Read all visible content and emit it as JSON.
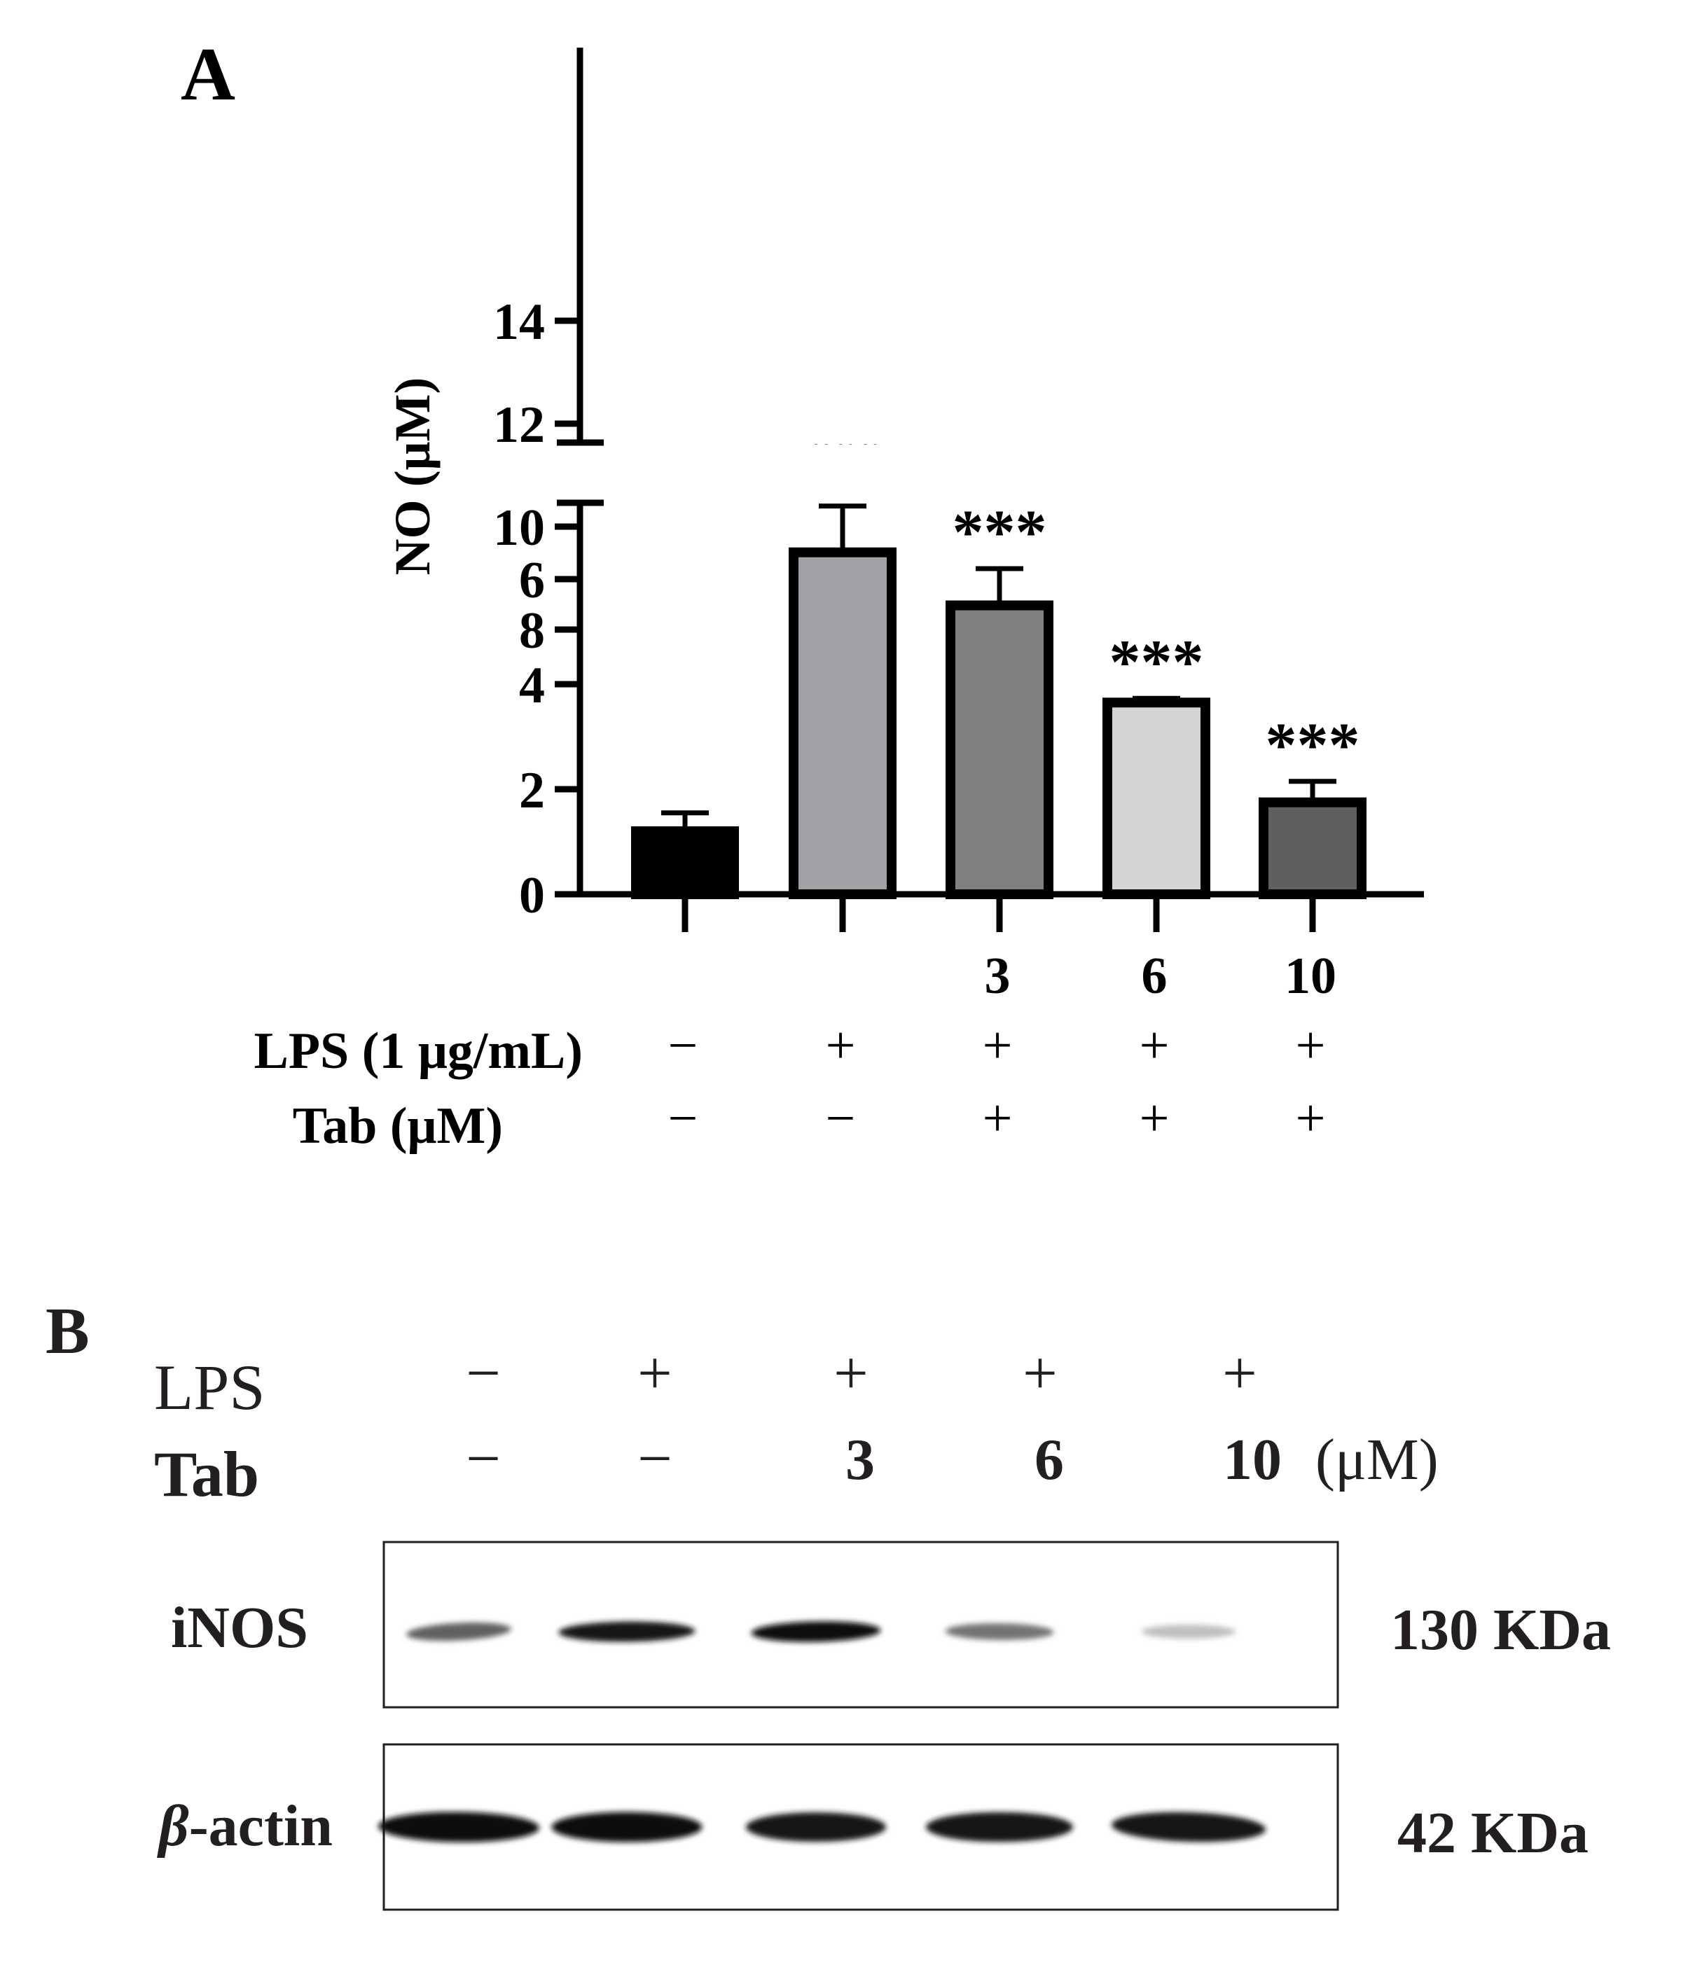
{
  "panel_a": {
    "label": "A",
    "conditions": {
      "lps_label": "LPS (1 μg/mL)",
      "tab_label": "Tab (μM)",
      "lps_signs": [
        "−",
        "+",
        "+",
        "+",
        "+"
      ],
      "tab_signs": [
        "−",
        "−",
        "+",
        "+",
        "+"
      ],
      "doses": [
        "",
        "",
        "3",
        "6",
        "10"
      ]
    }
  },
  "chart_data": {
    "type": "bar",
    "ylabel": "NO (μM)",
    "categories": [
      "",
      "",
      "3",
      "6",
      "10"
    ],
    "values": [
      1.2,
      9.5,
      5.5,
      3.65,
      1.75
    ],
    "errors": [
      0.35,
      0.9,
      0.7,
      0.08,
      0.4
    ],
    "annotations": [
      "",
      "###",
      "***",
      "***",
      "***"
    ],
    "colors": [
      "#000000",
      "#a2a2a6",
      "#808080",
      "#d4d4d4",
      "#5f5f5f"
    ],
    "yticks": [
      "0",
      "2",
      "4",
      "6",
      "8",
      "10",
      "12",
      "14"
    ],
    "ylim": [
      0,
      15
    ],
    "axis_break": [
      7.5,
      7.5
    ]
  },
  "panel_b": {
    "label": "B",
    "lps_label": "LPS",
    "tab_label": "Tab",
    "lps_signs": [
      "−",
      "+",
      "+",
      "+",
      "+"
    ],
    "tab_values": [
      "−",
      "−",
      "3",
      "6",
      "10"
    ],
    "unit": "(μM)",
    "blots": [
      {
        "name": "iNOS",
        "size": "130 KDa",
        "intensity": [
          0.62,
          0.92,
          0.95,
          0.55,
          0.25
        ]
      },
      {
        "name_prefix": "β",
        "name_suffix": "-actin",
        "size": "42 KDa",
        "intensity": [
          0.96,
          0.95,
          0.9,
          0.93,
          0.9
        ]
      }
    ]
  }
}
